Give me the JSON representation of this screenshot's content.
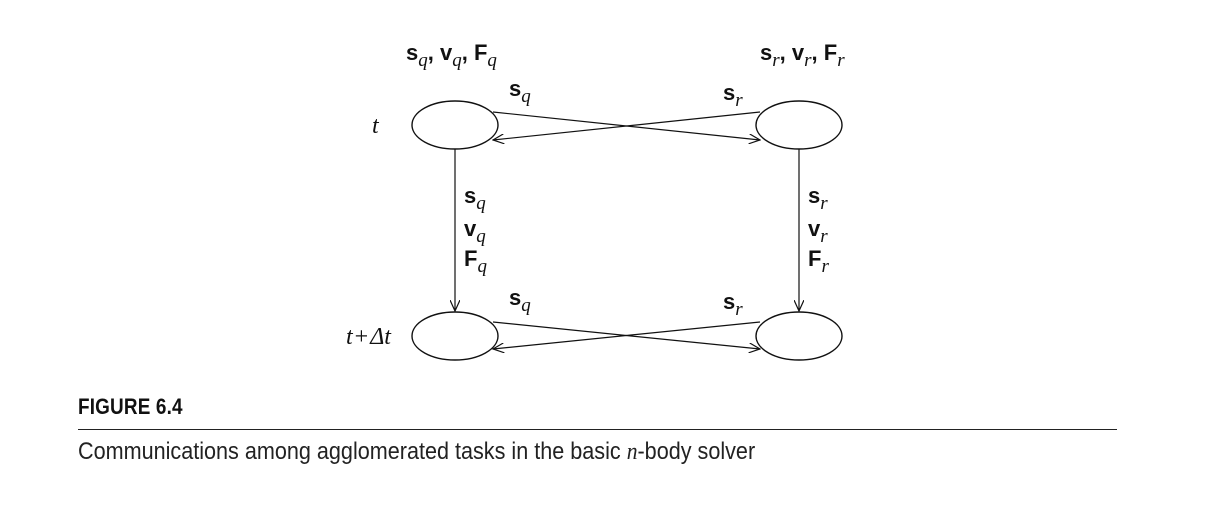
{
  "figure": {
    "title": "FIGURE 6.4",
    "caption_before": "Communications among agglomerated tasks in the basic ",
    "caption_italic": "n",
    "caption_after": "-body solver"
  },
  "diagram": {
    "time_top": "t",
    "time_bottom_t": "t",
    "time_bottom_op": "+",
    "time_bottom_delta": "Δt",
    "task_q": {
      "symbol_s": "s",
      "symbol_v": "v",
      "symbol_F": "F",
      "index": "q",
      "sep": ", "
    },
    "task_r": {
      "symbol_s": "s",
      "symbol_v": "v",
      "symbol_F": "F",
      "index": "r",
      "sep": ", "
    }
  }
}
